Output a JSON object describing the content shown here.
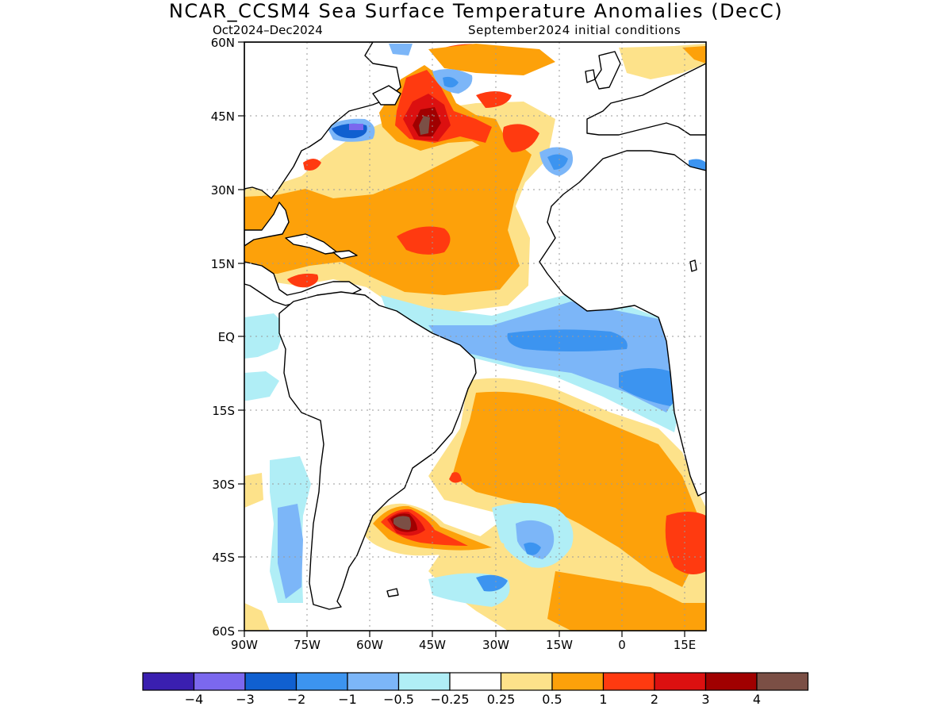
{
  "title": "NCAR_CCSM4 Sea Surface Temperature Anomalies (DecC)",
  "subtitle_left": "Oct2024–Dec2024",
  "subtitle_right": "September2024 initial conditions",
  "map": {
    "projection": "cylindrical equidistant",
    "lon_range": [
      -90,
      20
    ],
    "lat_range": [
      -60,
      60
    ],
    "lat_labels": [
      "60N",
      "45N",
      "30N",
      "15N",
      "EQ",
      "15S",
      "30S",
      "45S",
      "60S"
    ],
    "lon_labels": [
      "90W",
      "75W",
      "60W",
      "45W",
      "30W",
      "15W",
      "0",
      "15E"
    ],
    "grid": "dotted",
    "feature_colors": {
      "coastline": "#000000",
      "land": "#ffffff"
    }
  },
  "colorbar": {
    "colors": [
      "#3a1fb0",
      "#7b68ee",
      "#1060d0",
      "#3c94f0",
      "#7cb6f8",
      "#b0eef6",
      "#ffffff",
      "#fde28a",
      "#fda10a",
      "#ff3a10",
      "#dc1010",
      "#a00000",
      "#7b4f45"
    ],
    "labels": [
      "−4",
      "−3",
      "−2",
      "−1",
      "−0.5",
      "−0.25",
      "0.25",
      "0.5",
      "1",
      "2",
      "3",
      "4"
    ]
  }
}
